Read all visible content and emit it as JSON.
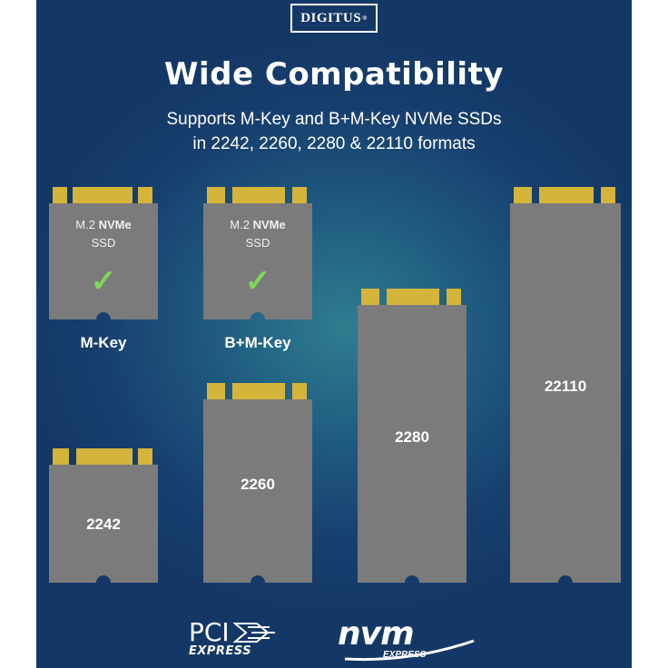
{
  "brand": {
    "logo": "DIGITUS",
    "logo_mark": "®"
  },
  "header": {
    "title": "Wide Compatibility",
    "subtitle_line1": "Supports M-Key and B+M-Key NVMe SSDs",
    "subtitle_line2": "in 2242, 2260, 2280 & 22110 formats"
  },
  "key_cards": [
    {
      "m2_prefix": "M.2 ",
      "m2_bold": "NVMe",
      "ssd": "SSD",
      "check": "✓",
      "label": "M-Key"
    },
    {
      "m2_prefix": "M.2 ",
      "m2_bold": "NVMe",
      "ssd": "SSD",
      "check": "✓",
      "label": "B+M-Key"
    }
  ],
  "size_cards": [
    {
      "label": "2242"
    },
    {
      "label": "2260"
    },
    {
      "label": "2280"
    },
    {
      "label": "22110"
    }
  ],
  "footer": {
    "pcie_top": "PCI",
    "pcie_bottom": "EXPRESS",
    "nvm_word": "nvm",
    "nvm_express": "EXPRESS"
  },
  "colors": {
    "card": "#7b7b7b",
    "card_edge": "#8a8a8a",
    "gold": "#d4b43a",
    "check": "#7ed957",
    "background": "#1f5b80"
  }
}
